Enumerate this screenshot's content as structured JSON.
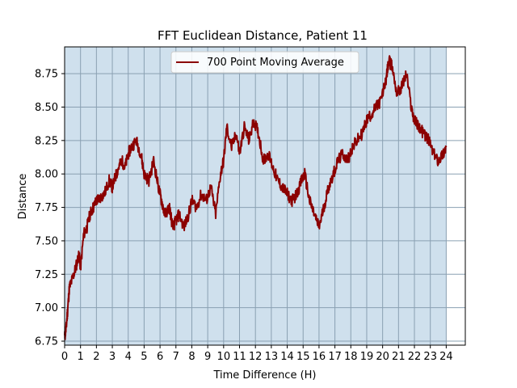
{
  "chart_data": {
    "type": "line",
    "title": "FFT Euclidean Distance, Patient 11",
    "xlabel": "Time Difference (H)",
    "ylabel": "Distance",
    "xlim": [
      0,
      25.2
    ],
    "ylim": [
      6.72,
      8.95
    ],
    "x_ticks": [
      0,
      1,
      2,
      3,
      4,
      5,
      6,
      7,
      8,
      9,
      10,
      11,
      12,
      13,
      14,
      15,
      16,
      17,
      18,
      19,
      20,
      21,
      22,
      23,
      24
    ],
    "x_tick_labels": [
      "0",
      "1",
      "2",
      "3",
      "4",
      "5",
      "6",
      "7",
      "8",
      "9",
      "10",
      "11",
      "12",
      "13",
      "14",
      "15",
      "16",
      "17",
      "18",
      "19",
      "20",
      "21",
      "22",
      "23",
      "24"
    ],
    "y_ticks": [
      6.75,
      7.0,
      7.25,
      7.5,
      7.75,
      8.0,
      8.25,
      8.5,
      8.75
    ],
    "y_tick_labels": [
      "6.75",
      "7.00",
      "7.25",
      "7.50",
      "7.75",
      "8.00",
      "8.25",
      "8.50",
      "8.75"
    ],
    "grid": true,
    "shaded_region": [
      0,
      24
    ],
    "legend": {
      "position": "top-center",
      "entries": [
        "700 Point Moving Average"
      ]
    },
    "series": [
      {
        "name": "700 Point Moving Average",
        "color": "#8b0000",
        "x": [
          0,
          0.1,
          0.2,
          0.3,
          0.5,
          0.7,
          0.9,
          1.0,
          1.2,
          1.4,
          1.6,
          1.8,
          2.0,
          2.2,
          2.5,
          2.8,
          3.0,
          3.2,
          3.4,
          3.6,
          3.8,
          4.0,
          4.2,
          4.5,
          4.8,
          5.0,
          5.3,
          5.6,
          5.9,
          6.1,
          6.3,
          6.6,
          6.8,
          7.0,
          7.2,
          7.5,
          7.8,
          8.0,
          8.3,
          8.6,
          8.9,
          9.2,
          9.5,
          9.8,
          10.0,
          10.2,
          10.5,
          10.8,
          11.0,
          11.3,
          11.6,
          11.9,
          12.2,
          12.5,
          12.8,
          13.1,
          13.4,
          13.7,
          14.0,
          14.3,
          14.6,
          14.9,
          15.1,
          15.4,
          15.7,
          16.0,
          16.3,
          16.6,
          16.9,
          17.2,
          17.5,
          17.8,
          18.1,
          18.4,
          18.7,
          19.0,
          19.3,
          19.6,
          19.9,
          20.2,
          20.4,
          20.6,
          20.9,
          21.2,
          21.5,
          21.8,
          22.0,
          22.3,
          22.6,
          22.9,
          23.2,
          23.5,
          23.8,
          24.0
        ],
        "values": [
          6.78,
          6.85,
          7.0,
          7.15,
          7.22,
          7.3,
          7.4,
          7.3,
          7.55,
          7.6,
          7.7,
          7.75,
          7.8,
          7.82,
          7.85,
          7.95,
          7.9,
          7.98,
          8.05,
          8.1,
          8.05,
          8.15,
          8.2,
          8.25,
          8.15,
          8.0,
          7.95,
          8.1,
          7.9,
          7.8,
          7.7,
          7.75,
          7.6,
          7.65,
          7.7,
          7.6,
          7.7,
          7.8,
          7.75,
          7.85,
          7.8,
          7.9,
          7.7,
          8.0,
          8.1,
          8.35,
          8.2,
          8.3,
          8.15,
          8.35,
          8.25,
          8.4,
          8.3,
          8.1,
          8.15,
          8.05,
          7.95,
          7.9,
          7.85,
          7.8,
          7.85,
          7.95,
          8.0,
          7.8,
          7.7,
          7.6,
          7.75,
          7.9,
          8.0,
          8.1,
          8.15,
          8.1,
          8.2,
          8.25,
          8.3,
          8.4,
          8.45,
          8.5,
          8.55,
          8.7,
          8.85,
          8.8,
          8.6,
          8.65,
          8.75,
          8.5,
          8.4,
          8.35,
          8.3,
          8.25,
          8.15,
          8.1,
          8.15,
          8.2
        ]
      }
    ]
  }
}
